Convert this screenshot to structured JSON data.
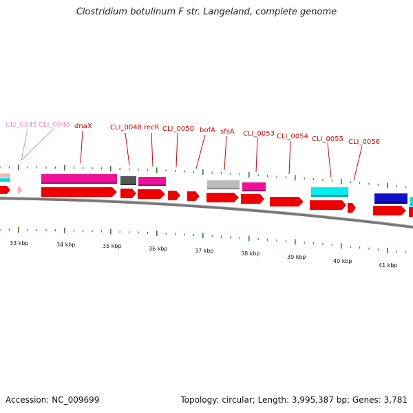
{
  "title": "Clostridium botulinum F str. Langeland, complete genome",
  "footer": {
    "accession": "Accession: NC_009699",
    "summary": "Topology: circular; Length: 3,995,387 bp; Genes: 3,781"
  },
  "gene_labels": [
    {
      "id": "cli0045",
      "text": "CLI_0045",
      "color": "pink"
    },
    {
      "id": "cli0046",
      "text": "CLI_0046",
      "color": "pink"
    },
    {
      "id": "dnax",
      "text": "dnaX",
      "color": "red"
    },
    {
      "id": "cli0048",
      "text": "CLI_0048",
      "color": "red"
    },
    {
      "id": "recr",
      "text": "recR",
      "color": "red"
    },
    {
      "id": "cli0050",
      "text": "CLI_0050",
      "color": "red"
    },
    {
      "id": "bofa",
      "text": "bofA",
      "color": "red"
    },
    {
      "id": "sfsa",
      "text": "sfsA",
      "color": "red"
    },
    {
      "id": "cli0053",
      "text": "CLI_0053",
      "color": "red"
    },
    {
      "id": "cli0054",
      "text": "CLI_0054",
      "color": "red"
    },
    {
      "id": "cli0055",
      "text": "CLI_0055",
      "color": "red"
    },
    {
      "id": "cli0056",
      "text": "CLI_0056",
      "color": "red"
    }
  ],
  "ruler_labels": [
    "33 kbp",
    "34 kbp",
    "35 kbp",
    "36 kbp",
    "37 kbp",
    "38 kbp",
    "39 kbp",
    "40 kbp",
    "41 kbp"
  ],
  "colors": {
    "cds_red": "#ee0000",
    "magenta": "#ee1199",
    "pink": "#ff99cc",
    "gray_dark": "#666666",
    "gray_light": "#bbbbbb",
    "cyan": "#00eeee",
    "blue": "#1111cc",
    "tick_green": "#228822",
    "backbone": "#888888"
  }
}
